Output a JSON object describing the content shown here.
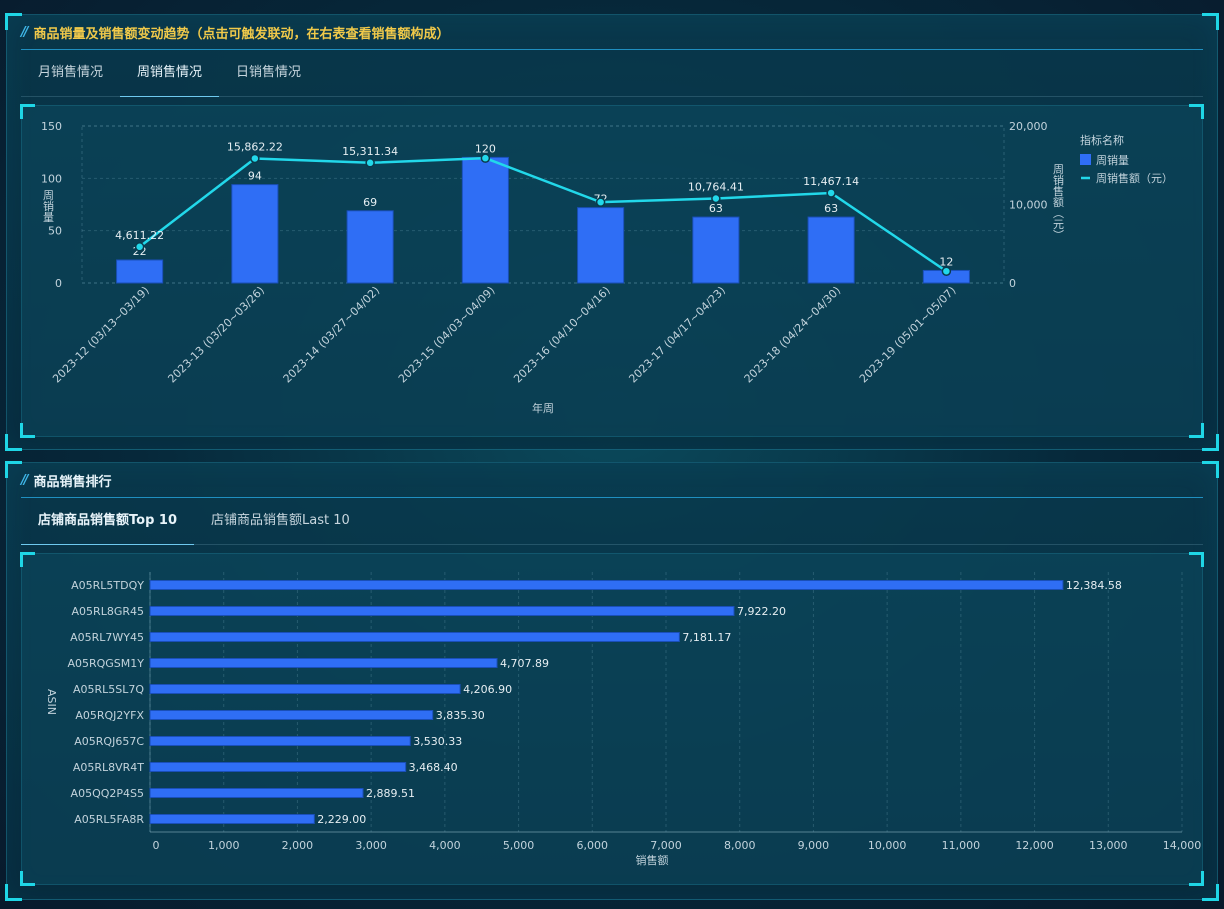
{
  "trend_panel": {
    "title": "商品销量及销售额变动趋势（点击可触发联动，在右表查看销售额构成）",
    "tabs": [
      {
        "label": "月销售情况",
        "active": false
      },
      {
        "label": "周销售情况",
        "active": true
      },
      {
        "label": "日销售情况",
        "active": false
      }
    ]
  },
  "ranking_panel": {
    "title": "商品销售排行",
    "tabs": [
      {
        "label": "店铺商品销售额Top 10",
        "active": true
      },
      {
        "label": "店铺商品销售额Last 10",
        "active": false
      }
    ]
  },
  "colors": {
    "title_text": "#f0c94a",
    "bar": "#2f6ef5",
    "line": "#22d8ea",
    "axis_text": "#c2d3dc"
  },
  "chart_data": [
    {
      "type": "bar+line",
      "title": "",
      "xlabel": "年周",
      "ylabel_left": "周销量",
      "ylabel_right": "周销售额（元）",
      "categories": [
        "2023-12 (03/13~03/19)",
        "2023-13 (03/20~03/26)",
        "2023-14 (03/27~04/02)",
        "2023-15 (04/03~04/09)",
        "2023-16 (04/10~04/16)",
        "2023-17 (04/17~04/23)",
        "2023-18 (04/24~04/30)",
        "2023-19 (05/01~05/07)"
      ],
      "series": [
        {
          "name": "周销量",
          "kind": "bar",
          "axis": "left",
          "values": [
            22,
            94,
            69,
            120,
            72,
            63,
            63,
            12
          ],
          "labels": [
            "22",
            "94",
            "69",
            "120",
            "72",
            "63",
            "63",
            "12"
          ]
        },
        {
          "name": "周销售额（元）",
          "kind": "line",
          "axis": "right",
          "values": [
            4611.22,
            15862.22,
            15311.34,
            15900,
            10300,
            10764.41,
            11467.14,
            1500
          ],
          "labels": [
            "4,611.22",
            "15,862.22",
            "15,311.34",
            "",
            "",
            "10,764.41",
            "11,467.14",
            ""
          ]
        }
      ],
      "ylim_left": [
        0,
        150
      ],
      "yticks_left": [
        "0",
        "50",
        "100",
        "150"
      ],
      "ylim_right": [
        0,
        20000
      ],
      "yticks_right": [
        "0",
        "10,000",
        "20,000"
      ],
      "legend_title": "指标名称",
      "legend_placement": "right",
      "grid": true
    },
    {
      "type": "bar",
      "orientation": "horizontal",
      "title": "",
      "xlabel": "销售额",
      "ylabel": "ASIN",
      "categories": [
        "A05RL5TDQY",
        "A05RL8GR45",
        "A05RL7WY45",
        "A05RQGSM1Y",
        "A05RL5SL7Q",
        "A05RQJ2YFX",
        "A05RQJ657C",
        "A05RL8VR4T",
        "A05QQ2P4S5",
        "A05RL5FA8R"
      ],
      "values": [
        12384.58,
        7922.2,
        7181.17,
        4707.89,
        4206.9,
        3835.3,
        3530.33,
        3468.4,
        2889.51,
        2229.0
      ],
      "labels": [
        "12,384.58",
        "7,922.20",
        "7,181.17",
        "4,707.89",
        "4,206.90",
        "3,835.30",
        "3,530.33",
        "3,468.40",
        "2,889.51",
        "2,229.00"
      ],
      "xlim": [
        0,
        14000
      ],
      "xticks": [
        "0",
        "1,000",
        "2,000",
        "3,000",
        "4,000",
        "5,000",
        "6,000",
        "7,000",
        "8,000",
        "9,000",
        "10,000",
        "11,000",
        "12,000",
        "13,000",
        "14,000"
      ],
      "grid": true
    }
  ]
}
